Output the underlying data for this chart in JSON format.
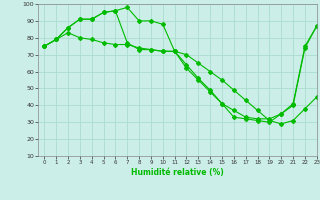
{
  "xlabel": "Humidité relative (%)",
  "xlim": [
    -0.5,
    23
  ],
  "ylim": [
    10,
    100
  ],
  "yticks": [
    10,
    20,
    30,
    40,
    50,
    60,
    70,
    80,
    90,
    100
  ],
  "xticks": [
    0,
    1,
    2,
    3,
    4,
    5,
    6,
    7,
    8,
    9,
    10,
    11,
    12,
    13,
    14,
    15,
    16,
    17,
    18,
    19,
    20,
    21,
    22,
    23
  ],
  "bg_color": "#cceee8",
  "grid_color": "#aaddcc",
  "line_color": "#00bb00",
  "line1_y": [
    75,
    79,
    86,
    91,
    91,
    95,
    96,
    98,
    90,
    90,
    88,
    72,
    64,
    56,
    49,
    41,
    37,
    33,
    32,
    32,
    35,
    40,
    74,
    87
  ],
  "line2_y": [
    75,
    79,
    86,
    91,
    91,
    95,
    96,
    77,
    73,
    73,
    72,
    72,
    62,
    55,
    48,
    41,
    33,
    32,
    31,
    30,
    35,
    41,
    75,
    87
  ],
  "line3_y": [
    75,
    79,
    83,
    80,
    79,
    77,
    76,
    76,
    74,
    73,
    72,
    72,
    70,
    65,
    60,
    55,
    49,
    43,
    37,
    31,
    29,
    31,
    38,
    45
  ]
}
